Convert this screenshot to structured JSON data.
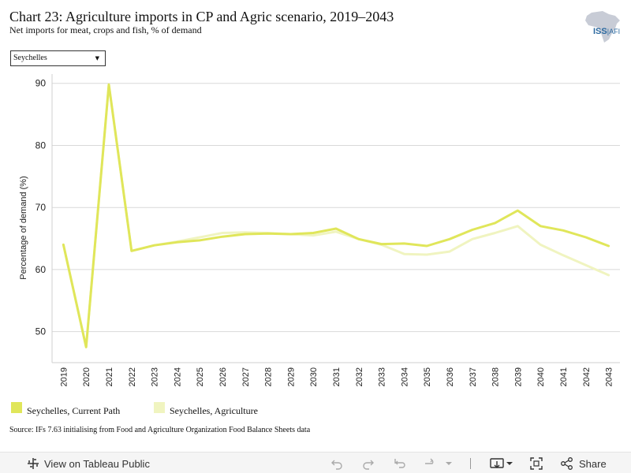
{
  "header": {
    "title": "Chart 23: Agriculture imports in CP and Agric scenario, 2019–2043",
    "subtitle": "Net imports for meat, crops and fish, % of demand"
  },
  "logo": {
    "text_main": "ISS",
    "text_suffix": "|AFI"
  },
  "filter": {
    "selected": "Seychelles",
    "icon": "caret-down-icon"
  },
  "chart_data": {
    "type": "line",
    "title": "Chart 23: Agriculture imports in CP and Agric scenario, 2019–2043",
    "subtitle": "Net imports for meat, crops and fish, % of demand",
    "xlabel": "",
    "ylabel": "Percentage of demand (%)",
    "ylim": [
      45,
      92
    ],
    "yticks": [
      50,
      60,
      70,
      80,
      90
    ],
    "grid": true,
    "legend_position": "bottom-left",
    "x": [
      "2019",
      "2020",
      "2021",
      "2022",
      "2023",
      "2024",
      "2025",
      "2026",
      "2027",
      "2028",
      "2029",
      "2030",
      "2031",
      "2032",
      "2033",
      "2034",
      "2035",
      "2036",
      "2037",
      "2038",
      "2039",
      "2040",
      "2041",
      "2042",
      "2043"
    ],
    "series": [
      {
        "name": "Seychelles, Current Path",
        "color": "#e0e65a",
        "values": [
          64.0,
          47.5,
          89.8,
          63.0,
          63.9,
          64.4,
          64.7,
          65.3,
          65.7,
          65.8,
          65.7,
          65.9,
          66.6,
          64.9,
          64.1,
          64.2,
          63.8,
          64.9,
          66.4,
          67.5,
          69.5,
          67.0,
          66.3,
          65.2,
          63.8
        ]
      },
      {
        "name": "Seychelles, Agriculture",
        "color": "#f0f4c0",
        "values": [
          64.0,
          47.5,
          89.8,
          63.0,
          63.9,
          64.5,
          65.2,
          65.9,
          66.0,
          65.9,
          65.7,
          65.5,
          66.1,
          64.9,
          64.0,
          62.5,
          62.4,
          62.9,
          64.9,
          65.9,
          67.0,
          64.0,
          62.3,
          60.7,
          59.1
        ]
      }
    ]
  },
  "source": "Source: IFs 7.63 initialising from Food and Agriculture Organization Food Balance Sheets data",
  "toolbar": {
    "view_label": "View on Tableau Public",
    "share_label": "Share",
    "icons": [
      "tableau-logo-icon",
      "undo-icon",
      "redo-icon",
      "revert-icon",
      "refresh-icon",
      "dropdown-caret-icon",
      "download-icon",
      "fullscreen-icon",
      "share-icon"
    ]
  }
}
